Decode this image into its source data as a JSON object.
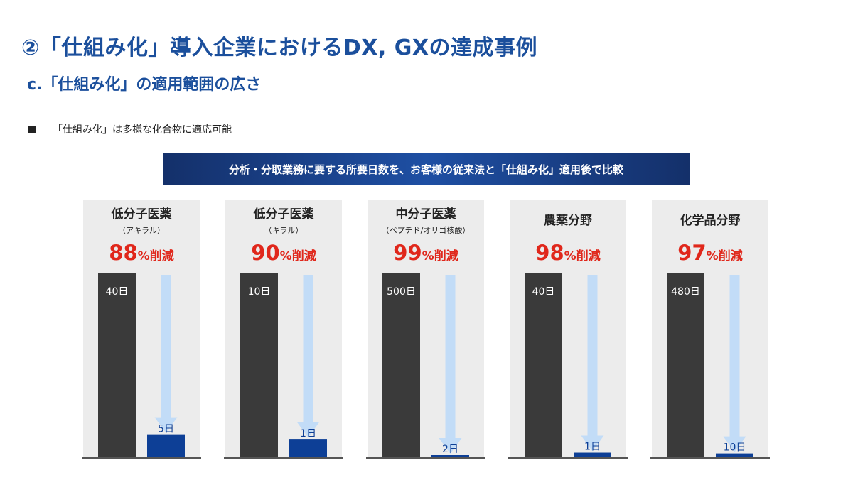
{
  "page": {
    "title": "②「仕組み化」導入企業におけるDX, GXの達成事例",
    "subtitle": "c.「仕組み化」の適用範囲の広さ",
    "bullet_text": "「仕組み化」は多様な化合物に適応可能",
    "banner_text": "分析・分取業務に要する所要日数を、お客様の従来法と「仕組み化」適用後で比較"
  },
  "colors": {
    "title": "#1b4f9c",
    "panel_bg": "#ececec",
    "before_bar": "#3a3a3a",
    "after_bar": "#0d3f96",
    "arrow": "#c2dcf7",
    "reduction": "#e0271b",
    "baseline": "#555555"
  },
  "chart_data": [
    {
      "type": "bar",
      "title": "低分子医薬",
      "subtitle": "（アキラル）",
      "reduction_value": "88",
      "reduction_suffix": "%削減",
      "categories": [
        "従来法",
        "仕組み化"
      ],
      "values": [
        40,
        5
      ],
      "unit": "日",
      "labels": [
        "40日",
        "5日"
      ]
    },
    {
      "type": "bar",
      "title": "低分子医薬",
      "subtitle": "（キラル）",
      "reduction_value": "90",
      "reduction_suffix": "%削減",
      "categories": [
        "従来法",
        "仕組み化"
      ],
      "values": [
        10,
        1
      ],
      "unit": "日",
      "labels": [
        "10日",
        "1日"
      ]
    },
    {
      "type": "bar",
      "title": "中分子医薬",
      "subtitle": "（ペプチド/オリゴ核酸）",
      "reduction_value": "99",
      "reduction_suffix": "%削減",
      "categories": [
        "従来法",
        "仕組み化"
      ],
      "values": [
        500,
        2
      ],
      "unit": "日",
      "labels": [
        "500日",
        "2日"
      ]
    },
    {
      "type": "bar",
      "title": "農薬分野",
      "subtitle": "",
      "reduction_value": "98",
      "reduction_suffix": "%削減",
      "categories": [
        "従来法",
        "仕組み化"
      ],
      "values": [
        40,
        1
      ],
      "unit": "日",
      "labels": [
        "40日",
        "1日"
      ]
    },
    {
      "type": "bar",
      "title": "化学品分野",
      "subtitle": "",
      "reduction_value": "97",
      "reduction_suffix": "%削減",
      "categories": [
        "従来法",
        "仕組み化"
      ],
      "values": [
        480,
        10
      ],
      "unit": "日",
      "labels": [
        "480日",
        "10日"
      ]
    }
  ]
}
